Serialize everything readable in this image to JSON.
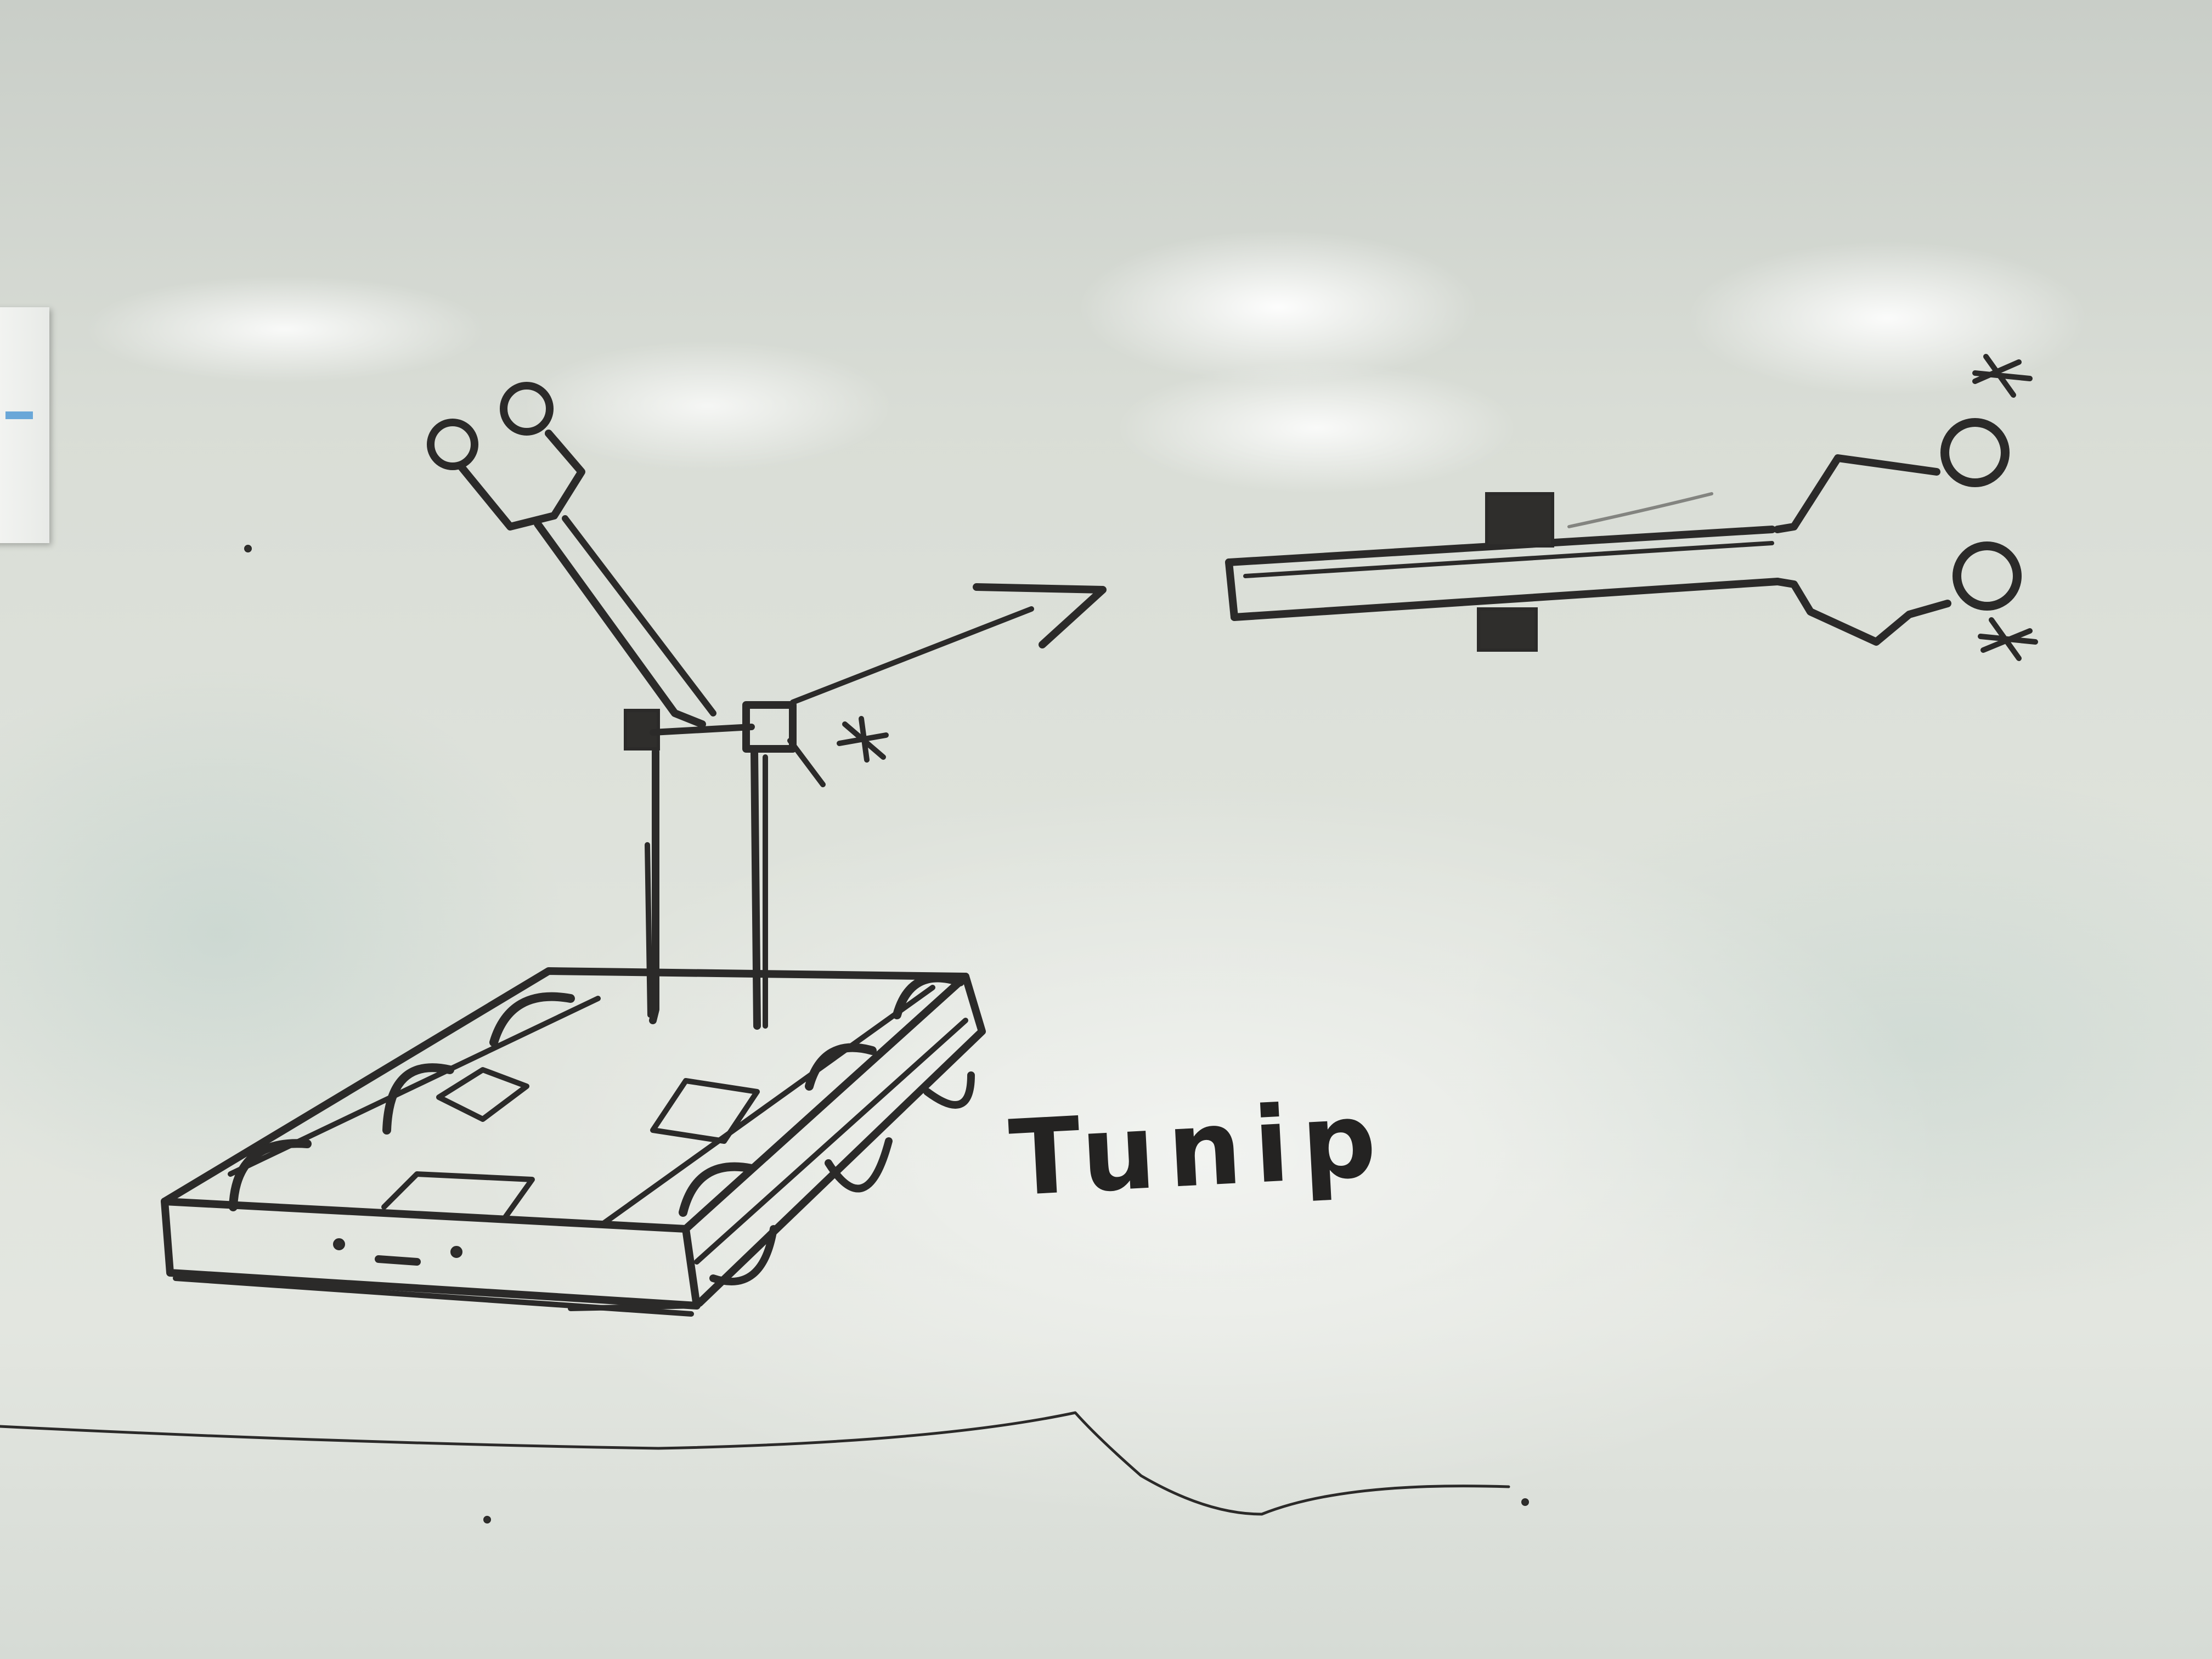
{
  "board": {
    "caption": "Tunip"
  }
}
